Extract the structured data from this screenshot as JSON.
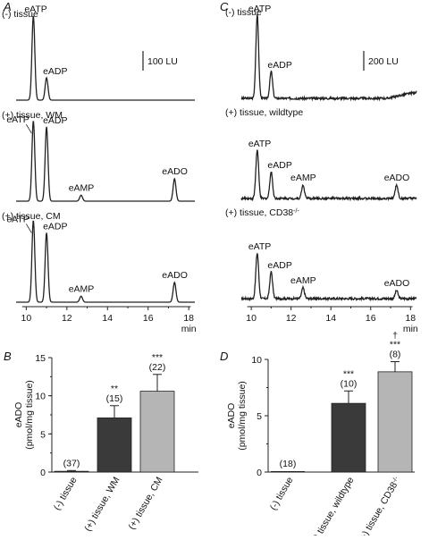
{
  "panels": {
    "A": {
      "letter": "A",
      "scale_bar_label": "100 LU",
      "traces": [
        {
          "condition": "(-) tissue",
          "peaks": [
            {
              "label": "eATP",
              "rt": 10.35,
              "height": 170
            },
            {
              "label": "eADP",
              "rt": 11.0,
              "height": 45
            }
          ]
        },
        {
          "condition": "(+) tissue, WM",
          "peaks": [
            {
              "label": "eATP",
              "rt": 10.35,
              "height": 162
            },
            {
              "label": "eADP",
              "rt": 11.0,
              "height": 150
            },
            {
              "label": "eAMP",
              "rt": 12.7,
              "height": 12
            },
            {
              "label": "eADO",
              "rt": 17.3,
              "height": 45
            }
          ]
        },
        {
          "condition": "(+) tissue, CM",
          "peaks": [
            {
              "label": "eATP",
              "rt": 10.35,
              "height": 165
            },
            {
              "label": "eADP",
              "rt": 11.0,
              "height": 140
            },
            {
              "label": "eAMP",
              "rt": 12.7,
              "height": 12
            },
            {
              "label": "eADO",
              "rt": 17.3,
              "height": 40
            }
          ]
        }
      ]
    },
    "C": {
      "letter": "C",
      "scale_bar_label": "200 LU",
      "traces": [
        {
          "condition": "(-) tissue",
          "peaks": [
            {
              "label": "eATP",
              "rt": 10.3,
              "height": 155
            },
            {
              "label": "eADP",
              "rt": 11.0,
              "height": 50
            }
          ]
        },
        {
          "condition": "(+) tissue, wildtype",
          "peaks": [
            {
              "label": "eATP",
              "rt": 10.3,
              "height": 90
            },
            {
              "label": "eADP",
              "rt": 11.0,
              "height": 50
            },
            {
              "label": "eAMP",
              "rt": 12.6,
              "height": 25
            },
            {
              "label": "eADO",
              "rt": 17.3,
              "height": 25
            }
          ]
        },
        {
          "condition": "(+) tissue, CD38",
          "condition_sup": "-/-",
          "peaks": [
            {
              "label": "eATP",
              "rt": 10.3,
              "height": 85
            },
            {
              "label": "eADP",
              "rt": 11.0,
              "height": 50
            },
            {
              "label": "eAMP",
              "rt": 12.6,
              "height": 20
            },
            {
              "label": "eADO",
              "rt": 17.3,
              "height": 15
            }
          ]
        }
      ]
    },
    "x_axis": {
      "ticks": [
        "10",
        "12",
        "14",
        "16",
        "18"
      ],
      "unit": "min"
    },
    "B": {
      "letter": "B"
    },
    "D": {
      "letter": "D"
    }
  },
  "chart_data": [
    {
      "panel": "B",
      "type": "bar",
      "ylabel": "eADO\n(pmol/mg tissue)",
      "ylim": [
        0,
        15
      ],
      "yticks": [
        0,
        5,
        10,
        15
      ],
      "categories": [
        "(-) tissue",
        "(+) tissue, WM",
        "(+) tissue, CM"
      ],
      "values": [
        0.1,
        7.1,
        10.6
      ],
      "errors": [
        0.1,
        1.6,
        2.2
      ],
      "n": [
        "(37)",
        "(15)",
        "(22)"
      ],
      "significance": [
        "",
        "**",
        "***"
      ],
      "colors": [
        "#2a2a2a",
        "#3a3a3a",
        "#b5b5b5"
      ]
    },
    {
      "panel": "D",
      "type": "bar",
      "ylabel": "eADO\n(pmol/mg tissue)",
      "ylim": [
        0,
        10
      ],
      "yticks": [
        0,
        5,
        10
      ],
      "categories": [
        "(-) tissue",
        "(+) tissue, wildtype",
        "(+) tissue, CD38"
      ],
      "category_sup": [
        "",
        "",
        "-/-"
      ],
      "values": [
        0,
        6.1,
        8.9
      ],
      "errors": [
        0,
        1.1,
        0.9
      ],
      "n": [
        "(18)",
        "(10)",
        "(8)"
      ],
      "significance": [
        "",
        "***",
        "***"
      ],
      "significance_extra": [
        "",
        "",
        "†"
      ],
      "colors": [
        "#2a2a2a",
        "#3a3a3a",
        "#b5b5b5"
      ]
    }
  ]
}
